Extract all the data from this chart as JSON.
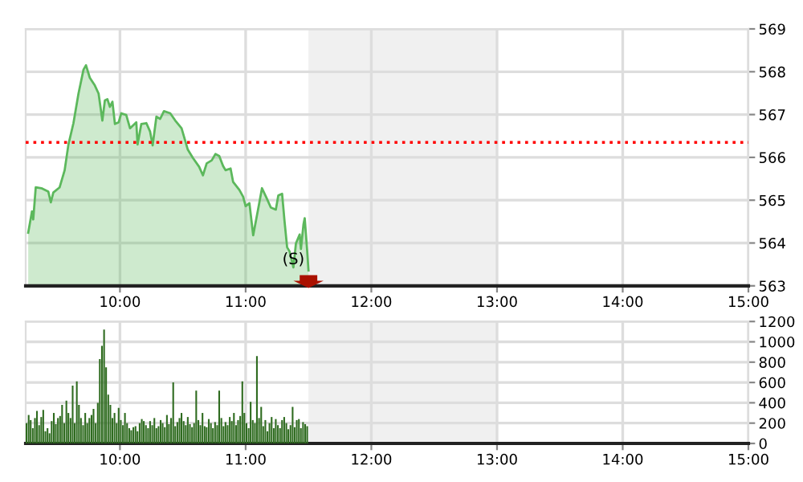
{
  "chart_data": [
    {
      "type": "area",
      "xlim": [
        9.25,
        15
      ],
      "ylim": [
        563,
        569
      ],
      "xticks": [
        {
          "value": 10,
          "label": "10:00"
        },
        {
          "value": 11,
          "label": "11:00"
        },
        {
          "value": 12,
          "label": "12:00"
        },
        {
          "value": 13,
          "label": "13:00"
        },
        {
          "value": 14,
          "label": "14:00"
        },
        {
          "value": 15,
          "label": "15:00"
        }
      ],
      "yticks": [
        563,
        564,
        565,
        566,
        567,
        568,
        569
      ],
      "grid": true,
      "ref_lines": [
        {
          "axis": "y",
          "value": 566.35,
          "label": null,
          "color": "#ff0000",
          "line_style": "dotted"
        }
      ],
      "bands": [
        {
          "axis": "x",
          "from": 11.5,
          "to": 13,
          "label": null,
          "color": "#f0f0f0"
        }
      ],
      "annotations": [
        {
          "text": "(S)",
          "x": 11.38,
          "y": 563.43
        }
      ],
      "series": [
        {
          "color": "#5cb85c",
          "x": [
            9.27,
            9.3,
            9.31,
            9.33,
            9.375,
            9.43,
            9.45,
            9.47,
            9.52,
            9.56,
            9.59,
            9.63,
            9.67,
            9.71,
            9.73,
            9.76,
            9.8,
            9.83,
            9.86,
            9.88,
            9.9,
            9.92,
            9.94,
            9.96,
            9.99,
            10.01,
            10.05,
            10.08,
            10.13,
            10.14,
            10.17,
            10.21,
            10.24,
            10.26,
            10.29,
            10.32,
            10.35,
            10.4,
            10.44,
            10.49,
            10.54,
            10.58,
            10.63,
            10.66,
            10.69,
            10.73,
            10.76,
            10.79,
            10.82,
            10.84,
            10.88,
            10.9,
            10.95,
            10.98,
            11.0,
            11.03,
            11.06,
            11.1,
            11.13,
            11.17,
            11.2,
            11.24,
            11.26,
            11.29,
            11.31,
            11.33,
            11.35,
            11.38,
            11.4,
            11.43,
            11.44,
            11.46,
            11.47,
            11.49,
            11.5
          ],
          "values": [
            564.24,
            564.74,
            564.55,
            565.3,
            565.28,
            565.2,
            564.95,
            565.18,
            565.3,
            565.7,
            566.3,
            566.8,
            567.49,
            568.05,
            568.15,
            567.86,
            567.68,
            567.49,
            566.86,
            567.33,
            567.36,
            567.18,
            567.3,
            566.78,
            566.82,
            567.03,
            566.99,
            566.68,
            566.82,
            566.3,
            566.78,
            566.8,
            566.6,
            566.28,
            566.95,
            566.9,
            567.08,
            567.03,
            566.86,
            566.68,
            566.18,
            565.99,
            565.78,
            565.58,
            565.86,
            565.93,
            566.08,
            566.03,
            565.8,
            565.7,
            565.74,
            565.43,
            565.24,
            565.08,
            564.86,
            564.93,
            564.18,
            564.8,
            565.28,
            565.03,
            564.83,
            564.78,
            565.11,
            565.15,
            564.49,
            563.9,
            563.8,
            563.43,
            563.99,
            564.2,
            563.86,
            564.43,
            564.58,
            563.8,
            563.36
          ]
        }
      ]
    },
    {
      "type": "bar",
      "xlim": [
        9.25,
        15
      ],
      "ylim": [
        0,
        1200
      ],
      "xticks": [
        {
          "value": 10,
          "label": "10:00"
        },
        {
          "value": 11,
          "label": "11:00"
        },
        {
          "value": 12,
          "label": "12:00"
        },
        {
          "value": 13,
          "label": "13:00"
        },
        {
          "value": 14,
          "label": "14:00"
        },
        {
          "value": 15,
          "label": "15:00"
        }
      ],
      "yticks": [
        0,
        200,
        400,
        600,
        800,
        1000,
        1200
      ],
      "grid": true,
      "bands": [
        {
          "axis": "x",
          "from": 11.5,
          "to": 13,
          "label": null,
          "color": "#f0f0f0"
        }
      ],
      "series": [
        {
          "color": "#2e6b1f",
          "x": [
            9.25,
            9.267,
            9.283,
            9.3,
            9.317,
            9.333,
            9.35,
            9.367,
            9.383,
            9.4,
            9.417,
            9.433,
            9.45,
            9.467,
            9.483,
            9.5,
            9.517,
            9.533,
            9.55,
            9.567,
            9.583,
            9.6,
            9.617,
            9.633,
            9.65,
            9.667,
            9.683,
            9.7,
            9.717,
            9.733,
            9.75,
            9.767,
            9.783,
            9.8,
            9.817,
            9.833,
            9.85,
            9.867,
            9.883,
            9.9,
            9.917,
            9.933,
            9.95,
            9.967,
            9.983,
            10,
            10.017,
            10.033,
            10.05,
            10.067,
            10.083,
            10.1,
            10.117,
            10.133,
            10.15,
            10.167,
            10.183,
            10.2,
            10.217,
            10.233,
            10.25,
            10.267,
            10.283,
            10.3,
            10.317,
            10.333,
            10.35,
            10.367,
            10.383,
            10.4,
            10.417,
            10.433,
            10.45,
            10.467,
            10.483,
            10.5,
            10.517,
            10.533,
            10.55,
            10.567,
            10.583,
            10.6,
            10.617,
            10.633,
            10.65,
            10.667,
            10.683,
            10.7,
            10.717,
            10.733,
            10.75,
            10.767,
            10.783,
            10.8,
            10.817,
            10.833,
            10.85,
            10.867,
            10.883,
            10.9,
            10.917,
            10.933,
            10.95,
            10.967,
            10.983,
            11,
            11.017,
            11.033,
            11.05,
            11.067,
            11.083,
            11.1,
            11.117,
            11.133,
            11.15,
            11.167,
            11.183,
            11.2,
            11.217,
            11.233,
            11.25,
            11.267,
            11.283,
            11.3,
            11.317,
            11.333,
            11.35,
            11.367,
            11.383,
            11.4,
            11.417,
            11.433,
            11.45,
            11.467,
            11.483
          ],
          "values": [
            200,
            280,
            230,
            150,
            250,
            320,
            180,
            260,
            330,
            120,
            150,
            100,
            220,
            300,
            190,
            250,
            270,
            380,
            200,
            420,
            300,
            250,
            570,
            200,
            610,
            380,
            250,
            180,
            300,
            200,
            250,
            280,
            340,
            200,
            400,
            830,
            960,
            1120,
            750,
            480,
            380,
            250,
            300,
            200,
            350,
            230,
            180,
            300,
            200,
            150,
            130,
            160,
            170,
            120,
            200,
            240,
            220,
            180,
            150,
            220,
            180,
            250,
            150,
            170,
            230,
            200,
            160,
            280,
            190,
            250,
            600,
            170,
            210,
            250,
            300,
            220,
            180,
            260,
            190,
            160,
            200,
            520,
            230,
            180,
            300,
            170,
            160,
            240,
            200,
            150,
            210,
            180,
            520,
            250,
            170,
            210,
            180,
            260,
            220,
            300,
            180,
            230,
            270,
            610,
            300,
            200,
            150,
            410,
            230,
            200,
            860,
            250,
            360,
            170,
            230,
            120,
            200,
            260,
            150,
            240,
            180,
            150,
            230,
            260,
            200,
            140,
            180,
            360,
            160,
            230,
            240,
            150,
            210,
            190,
            170
          ]
        }
      ]
    }
  ]
}
